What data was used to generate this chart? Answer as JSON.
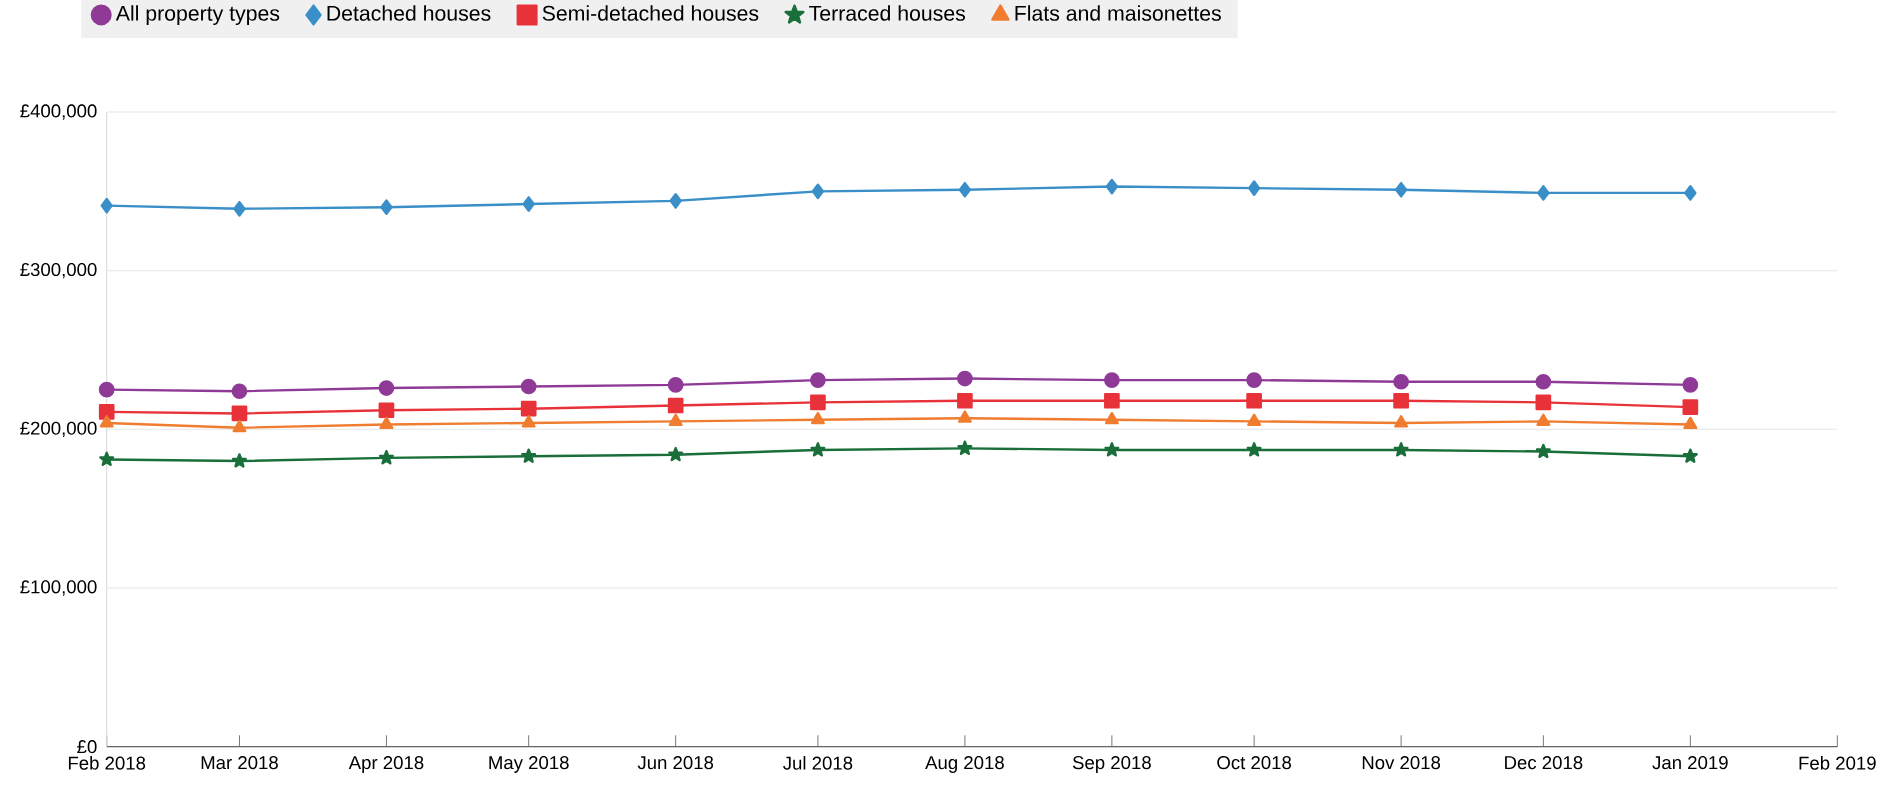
{
  "chart_data": {
    "type": "line",
    "x": [
      "2018-02",
      "2018-03",
      "2018-04",
      "2018-05",
      "2018-06",
      "2018-07",
      "2018-08",
      "2018-09",
      "2018-10",
      "2018-11",
      "2018-12",
      "2019-01"
    ],
    "series": [
      {
        "name": "All property types",
        "color": "#8e3a96",
        "marker": "circle",
        "values": [
          225000,
          224000,
          226000,
          227000,
          228000,
          231000,
          232000,
          231000,
          231000,
          230000,
          230000,
          228000
        ]
      },
      {
        "name": "Detached houses",
        "color": "#3a8fc8",
        "marker": "diamond",
        "values": [
          341000,
          339000,
          340000,
          342000,
          344000,
          350000,
          351000,
          353000,
          352000,
          351000,
          349000,
          349000
        ]
      },
      {
        "name": "Semi-detached houses",
        "color": "#e8323a",
        "marker": "square",
        "values": [
          211000,
          210000,
          212000,
          213000,
          215000,
          217000,
          218000,
          218000,
          218000,
          218000,
          217000,
          214000
        ]
      },
      {
        "name": "Terraced houses",
        "color": "#1a6e3a",
        "marker": "star",
        "values": [
          181000,
          180000,
          182000,
          183000,
          184000,
          187000,
          188000,
          187000,
          187000,
          187000,
          186000,
          183000
        ]
      },
      {
        "name": "Flats and maisonettes",
        "color": "#f07c30",
        "marker": "triangle",
        "values": [
          204000,
          201000,
          203000,
          204000,
          205000,
          206000,
          207000,
          206000,
          205000,
          204000,
          205000,
          203000
        ]
      }
    ],
    "xlim": [
      "2018-02",
      "2019-02"
    ],
    "xticks": [
      {
        "value": "2018-02",
        "label": "Feb 2018"
      },
      {
        "value": "2018-03",
        "label": "Mar 2018"
      },
      {
        "value": "2018-04",
        "label": "Apr 2018"
      },
      {
        "value": "2018-05",
        "label": "May 2018"
      },
      {
        "value": "2018-06",
        "label": "Jun 2018"
      },
      {
        "value": "2018-07",
        "label": "Jul 2018"
      },
      {
        "value": "2018-08",
        "label": "Aug 2018"
      },
      {
        "value": "2018-09",
        "label": "Sep 2018"
      },
      {
        "value": "2018-10",
        "label": "Oct 2018"
      },
      {
        "value": "2018-11",
        "label": "Nov 2018"
      },
      {
        "value": "2018-12",
        "label": "Dec 2018"
      },
      {
        "value": "2019-01",
        "label": "Jan 2019"
      },
      {
        "value": "2019-02",
        "label": "Feb 2019"
      }
    ],
    "ylim": [
      0,
      400000
    ],
    "yticks": [
      {
        "value": 0,
        "label": "£0"
      },
      {
        "value": 100000,
        "label": "£100,000"
      },
      {
        "value": 200000,
        "label": "£200,000"
      },
      {
        "value": 300000,
        "label": "£300,000"
      },
      {
        "value": 400000,
        "label": "£400,000"
      }
    ],
    "grid": "y",
    "legend": "top",
    "line_style": "solid"
  }
}
